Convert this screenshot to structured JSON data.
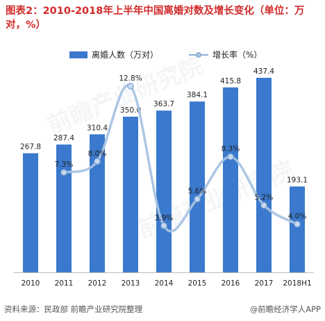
{
  "title": "图表2：2010-2018年上半年中国离婚对数及增长变化（单位：万对，%）",
  "legend": {
    "bar_label": "离婚人数（万对）",
    "line_label": "增长率（%）"
  },
  "chart_data": {
    "type": "bar",
    "categories": [
      "2010",
      "2011",
      "2012",
      "2013",
      "2014",
      "2015",
      "2016",
      "2017",
      "2018H1"
    ],
    "series": [
      {
        "name": "离婚人数（万对）",
        "type": "bar",
        "values": [
          267.8,
          287.4,
          310.4,
          350.0,
          363.7,
          384.1,
          415.8,
          437.4,
          193.1
        ],
        "labels": [
          "267.8",
          "287.4",
          "310.4",
          "350.0",
          "363.7",
          "384.1",
          "415.8",
          "437.4",
          "193.1"
        ],
        "color": "#3a79cd"
      },
      {
        "name": "增长率（%）",
        "type": "line",
        "smooth": true,
        "values": [
          null,
          7.3,
          8.0,
          12.8,
          3.9,
          5.6,
          8.3,
          5.2,
          4.0
        ],
        "labels": [
          "",
          "7.3%",
          "8.0%",
          "12.8%",
          "3.9%",
          "5.6%",
          "8.3%",
          "5.2%",
          "4.0%"
        ],
        "color": "#a8c3e3"
      }
    ],
    "bar_axis_range": [
      0,
      500
    ],
    "line_axis_range": [
      0,
      14
    ],
    "grid": false,
    "legend_position": "top"
  },
  "footer": {
    "source": "资料来源：民政部 前瞻产业研究院整理",
    "brand": "@前瞻经济学人APP"
  },
  "watermark": "前瞻产业研究院"
}
